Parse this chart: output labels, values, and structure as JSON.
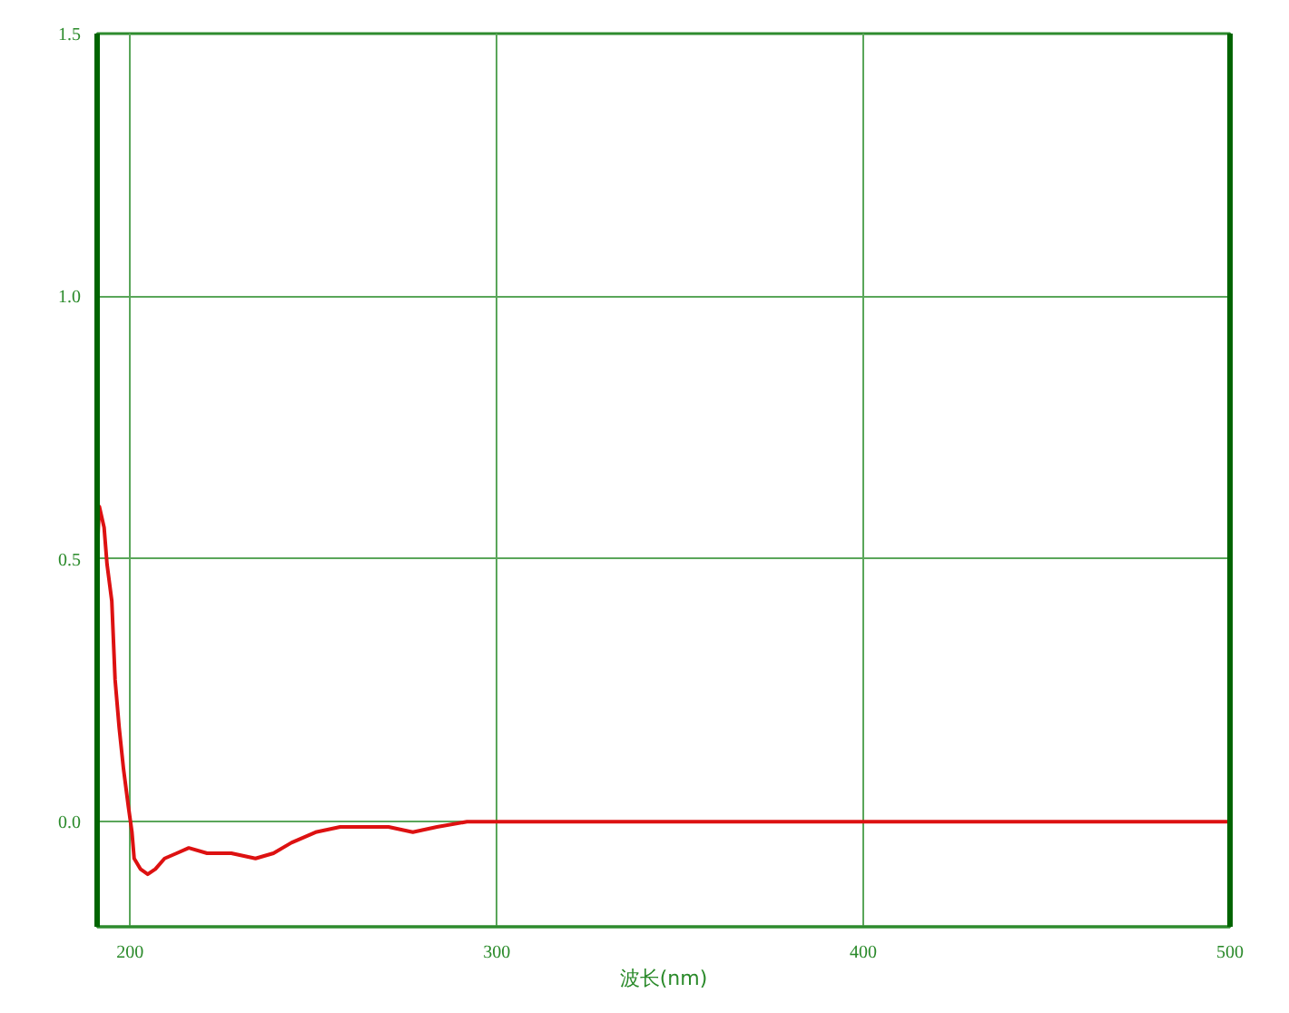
{
  "chart_data": {
    "type": "line",
    "xlabel": "波长(nm)",
    "x": [
      191,
      191.6,
      192.9,
      193.7,
      195,
      195.9,
      197,
      198.2,
      199.5,
      200.5,
      201.1,
      202.8,
      204.8,
      206.9,
      209.4,
      212.7,
      216,
      221,
      227.6,
      234.2,
      239.1,
      244,
      250.6,
      257.3,
      263.9,
      270.5,
      277.1,
      283.7,
      291.9,
      300,
      350,
      400,
      450,
      500
    ],
    "series": [
      {
        "color": "#dd1111",
        "values": [
          0.51,
          0.6,
          0.56,
          0.49,
          0.42,
          0.27,
          0.18,
          0.1,
          0.03,
          -0.02,
          -0.07,
          -0.09,
          -0.1,
          -0.09,
          -0.07,
          -0.06,
          -0.05,
          -0.06,
          -0.06,
          -0.07,
          -0.06,
          -0.04,
          -0.02,
          -0.01,
          -0.01,
          -0.01,
          -0.02,
          -0.01,
          0,
          0,
          0,
          0,
          0,
          0
        ]
      }
    ],
    "xlim": [
      191,
      500
    ],
    "ylim": [
      -0.2,
      1.5
    ],
    "xticks": [
      200,
      300,
      400,
      500
    ],
    "yticks": [
      {
        "value": 0,
        "label": "0.0"
      },
      0.5,
      {
        "value": 1,
        "label": "1.0"
      },
      1.5
    ],
    "grid": true
  }
}
